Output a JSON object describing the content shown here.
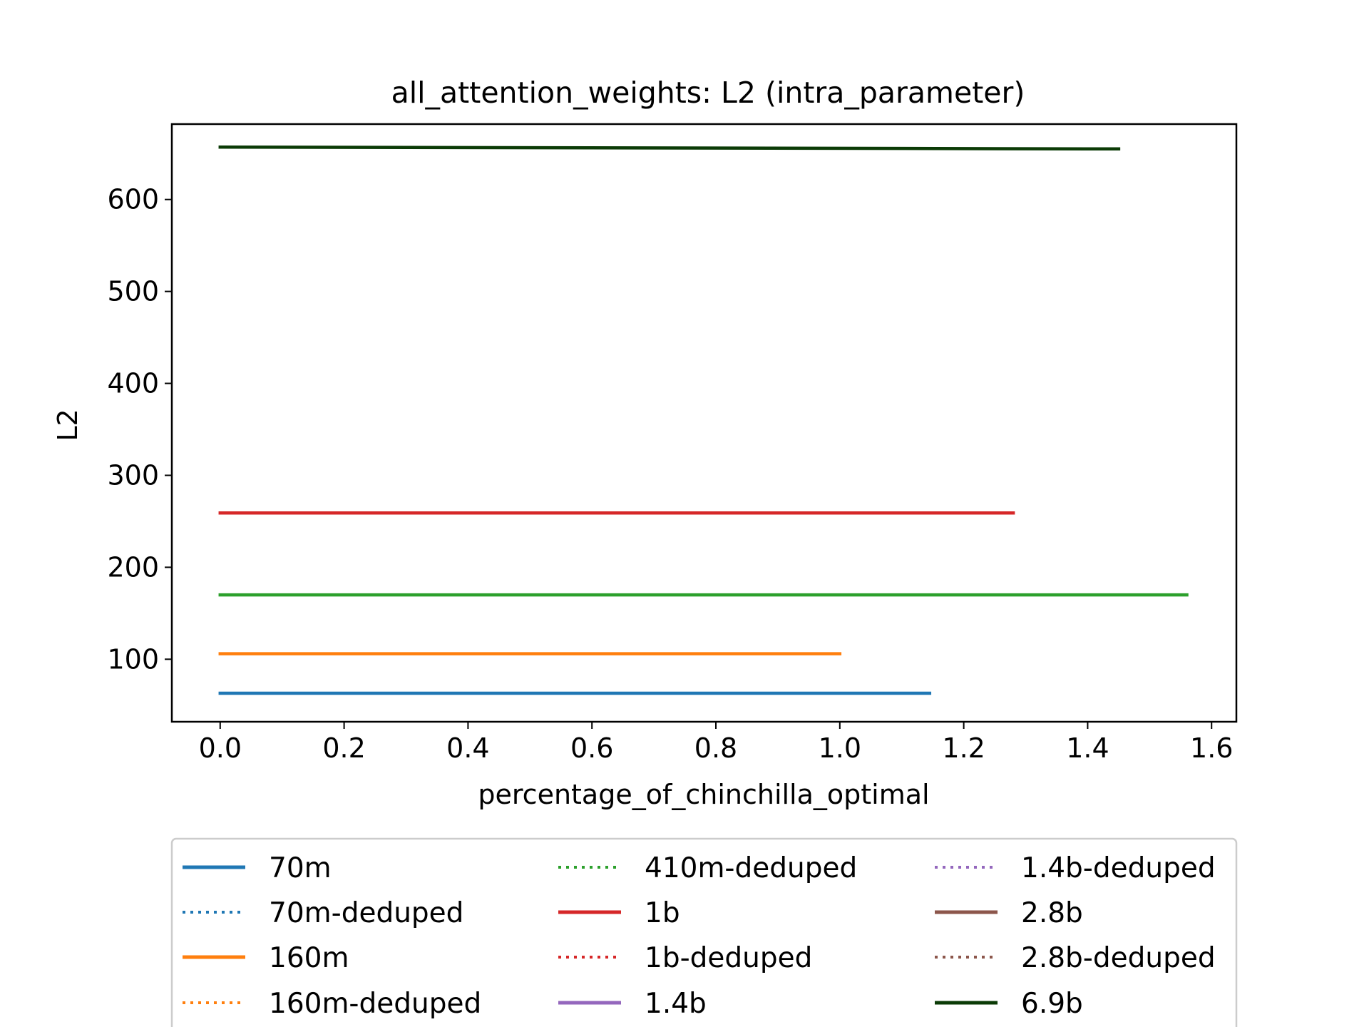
{
  "chart_data": {
    "type": "line",
    "title": "all_attention_weights: L2 (intra_parameter)",
    "xlabel": "percentage_of_chinchilla_optimal",
    "ylabel": "L2",
    "xlim": [
      -0.078,
      1.64
    ],
    "ylim": [
      32,
      682
    ],
    "xticks": [
      0.0,
      0.2,
      0.4,
      0.6,
      0.8,
      1.0,
      1.2,
      1.4,
      1.6
    ],
    "xtick_labels": [
      "0.0",
      "0.2",
      "0.4",
      "0.6",
      "0.8",
      "1.0",
      "1.2",
      "1.4",
      "1.6"
    ],
    "yticks": [
      100,
      200,
      300,
      400,
      500,
      600
    ],
    "ytick_labels": [
      "100",
      "200",
      "300",
      "400",
      "500",
      "600"
    ],
    "grid": false,
    "legend_position": "below",
    "legend_columns": 3,
    "series": [
      {
        "name": "70m",
        "color": "#1f77b4",
        "style": "solid",
        "x": [
          0.0,
          1.145
        ],
        "y": [
          63,
          63
        ]
      },
      {
        "name": "70m-deduped",
        "color": "#1f77b4",
        "style": "dotted",
        "x": [
          0.0,
          1.145
        ],
        "y": [
          63,
          63
        ]
      },
      {
        "name": "160m",
        "color": "#ff7f0e",
        "style": "solid",
        "x": [
          0.0,
          1.0
        ],
        "y": [
          106,
          106
        ]
      },
      {
        "name": "160m-deduped",
        "color": "#ff7f0e",
        "style": "dotted",
        "x": [
          0.0,
          1.0
        ],
        "y": [
          106,
          106
        ]
      },
      {
        "name": "410m-deduped",
        "color": "#2ca02c",
        "style": "dotted",
        "x": [
          0.0,
          1.56
        ],
        "y": [
          170,
          170
        ]
      },
      {
        "name": "1b",
        "color": "#d62728",
        "style": "solid",
        "x": [
          0.0,
          1.28
        ],
        "y": [
          259,
          259
        ]
      },
      {
        "name": "1b-deduped",
        "color": "#d62728",
        "style": "dotted",
        "x": [
          0.0,
          1.28
        ],
        "y": [
          259,
          259
        ]
      },
      {
        "name": "1.4b",
        "color": "#9467bd",
        "style": "solid",
        "x": [],
        "y": []
      },
      {
        "name": "1.4b-deduped",
        "color": "#9467bd",
        "style": "dotted",
        "x": [],
        "y": []
      },
      {
        "name": "2.8b",
        "color": "#8c564b",
        "style": "solid",
        "x": [],
        "y": []
      },
      {
        "name": "2.8b-deduped",
        "color": "#8c564b",
        "style": "dotted",
        "x": [],
        "y": []
      },
      {
        "name": "6.9b",
        "color": "#0b3b06",
        "style": "solid",
        "x": [
          0.0,
          1.45
        ],
        "y": [
          657,
          655
        ]
      }
    ],
    "extra_lines": [
      {
        "color": "#2ca02c",
        "style": "solid",
        "x": [
          0.0,
          1.56
        ],
        "y": [
          170,
          170
        ]
      }
    ]
  }
}
